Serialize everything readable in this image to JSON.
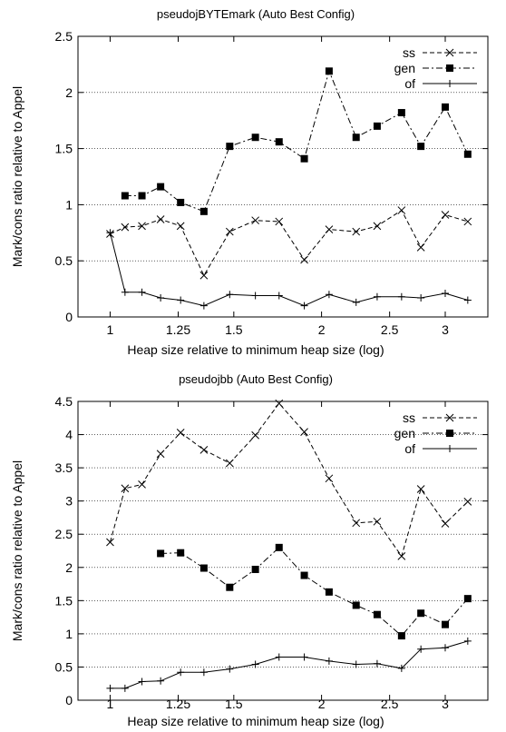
{
  "chart_data": [
    {
      "type": "line",
      "title": "pseudojBYTEmark (Auto Best Config)",
      "xlabel": "Heap size relative to minimum heap size (log)",
      "ylabel": "Mark/cons ratio relative to Appel",
      "xscale": "log",
      "xlim": [
        0.9,
        3.45
      ],
      "ylim": [
        0,
        2.5
      ],
      "xticks": [
        1,
        1.25,
        1.5,
        2,
        2.5,
        3
      ],
      "xtick_labels": [
        "1",
        "1.25",
        "1.5",
        "2",
        "2.5",
        "3"
      ],
      "yticks": [
        0,
        0.5,
        1,
        1.5,
        2,
        2.5
      ],
      "ytick_labels": [
        "0",
        "0.5",
        "1",
        "1.5",
        "2",
        "2.5"
      ],
      "grid": "horizontal dotted",
      "legend_position": "top-right",
      "series": [
        {
          "name": "ss",
          "style": "dashed",
          "marker": "x",
          "x": [
            1.0,
            1.05,
            1.11,
            1.18,
            1.26,
            1.36,
            1.48,
            1.61,
            1.74,
            1.89,
            2.05,
            2.24,
            2.4,
            2.6,
            2.77,
            3.0,
            3.23
          ],
          "y": [
            0.74,
            0.8,
            0.81,
            0.87,
            0.81,
            0.37,
            0.76,
            0.86,
            0.85,
            0.51,
            0.78,
            0.76,
            0.81,
            0.95,
            0.62,
            0.91,
            0.85
          ]
        },
        {
          "name": "gen",
          "style": "dashdot",
          "marker": "filled-square",
          "x": [
            1.05,
            1.11,
            1.18,
            1.26,
            1.36,
            1.48,
            1.61,
            1.74,
            1.89,
            2.05,
            2.24,
            2.4,
            2.6,
            2.77,
            3.0,
            3.23
          ],
          "y": [
            1.08,
            1.08,
            1.16,
            1.02,
            0.94,
            1.52,
            1.6,
            1.56,
            1.41,
            2.19,
            1.6,
            1.7,
            1.82,
            1.52,
            1.87,
            1.45
          ]
        },
        {
          "name": "of",
          "style": "solid",
          "marker": "plus",
          "x": [
            1.0,
            1.05,
            1.11,
            1.18,
            1.26,
            1.36,
            1.48,
            1.61,
            1.74,
            1.89,
            2.05,
            2.24,
            2.4,
            2.6,
            2.77,
            3.0,
            3.23
          ],
          "y": [
            0.75,
            0.22,
            0.22,
            0.17,
            0.15,
            0.1,
            0.2,
            0.19,
            0.19,
            0.1,
            0.2,
            0.13,
            0.18,
            0.18,
            0.17,
            0.21,
            0.15
          ]
        }
      ]
    },
    {
      "type": "line",
      "title": "pseudojbb (Auto Best Config)",
      "xlabel": "Heap size relative to minimum heap size (log)",
      "ylabel": "Mark/cons ratio relative to Appel",
      "xscale": "log",
      "xlim": [
        0.9,
        3.45
      ],
      "ylim": [
        0,
        4.5
      ],
      "xticks": [
        1,
        1.25,
        1.5,
        2,
        2.5,
        3
      ],
      "xtick_labels": [
        "1",
        "1.25",
        "1.5",
        "2",
        "2.5",
        "3"
      ],
      "yticks": [
        0,
        0.5,
        1,
        1.5,
        2,
        2.5,
        3,
        3.5,
        4,
        4.5
      ],
      "ytick_labels": [
        "0",
        "0.5",
        "1",
        "1.5",
        "2",
        "2.5",
        "3",
        "3.5",
        "4",
        "4.5"
      ],
      "grid": "horizontal dotted",
      "legend_position": "top-right",
      "series": [
        {
          "name": "ss",
          "style": "dashed",
          "marker": "x",
          "x": [
            1.0,
            1.05,
            1.11,
            1.18,
            1.26,
            1.36,
            1.48,
            1.61,
            1.74,
            1.89,
            2.05,
            2.24,
            2.4,
            2.6,
            2.77,
            3.0,
            3.23
          ],
          "y": [
            2.38,
            3.19,
            3.25,
            3.71,
            4.03,
            3.77,
            3.57,
            3.99,
            4.47,
            4.04,
            3.34,
            2.67,
            2.69,
            2.17,
            3.18,
            2.66,
            2.99
          ]
        },
        {
          "name": "gen",
          "style": "dashdot",
          "marker": "filled-square",
          "x": [
            1.18,
            1.26,
            1.36,
            1.48,
            1.61,
            1.74,
            1.89,
            2.05,
            2.24,
            2.4,
            2.6,
            2.77,
            3.0,
            3.23
          ],
          "y": [
            2.21,
            2.22,
            1.99,
            1.7,
            1.97,
            2.3,
            1.88,
            1.63,
            1.43,
            1.29,
            0.97,
            1.31,
            1.14,
            1.53
          ]
        },
        {
          "name": "of",
          "style": "solid",
          "marker": "plus",
          "x": [
            1.0,
            1.05,
            1.11,
            1.18,
            1.26,
            1.36,
            1.48,
            1.61,
            1.74,
            1.89,
            2.05,
            2.24,
            2.4,
            2.6,
            2.77,
            3.0,
            3.23
          ],
          "y": [
            0.18,
            0.18,
            0.28,
            0.29,
            0.42,
            0.42,
            0.47,
            0.54,
            0.65,
            0.65,
            0.59,
            0.54,
            0.55,
            0.48,
            0.77,
            0.79,
            0.89
          ]
        }
      ]
    }
  ]
}
